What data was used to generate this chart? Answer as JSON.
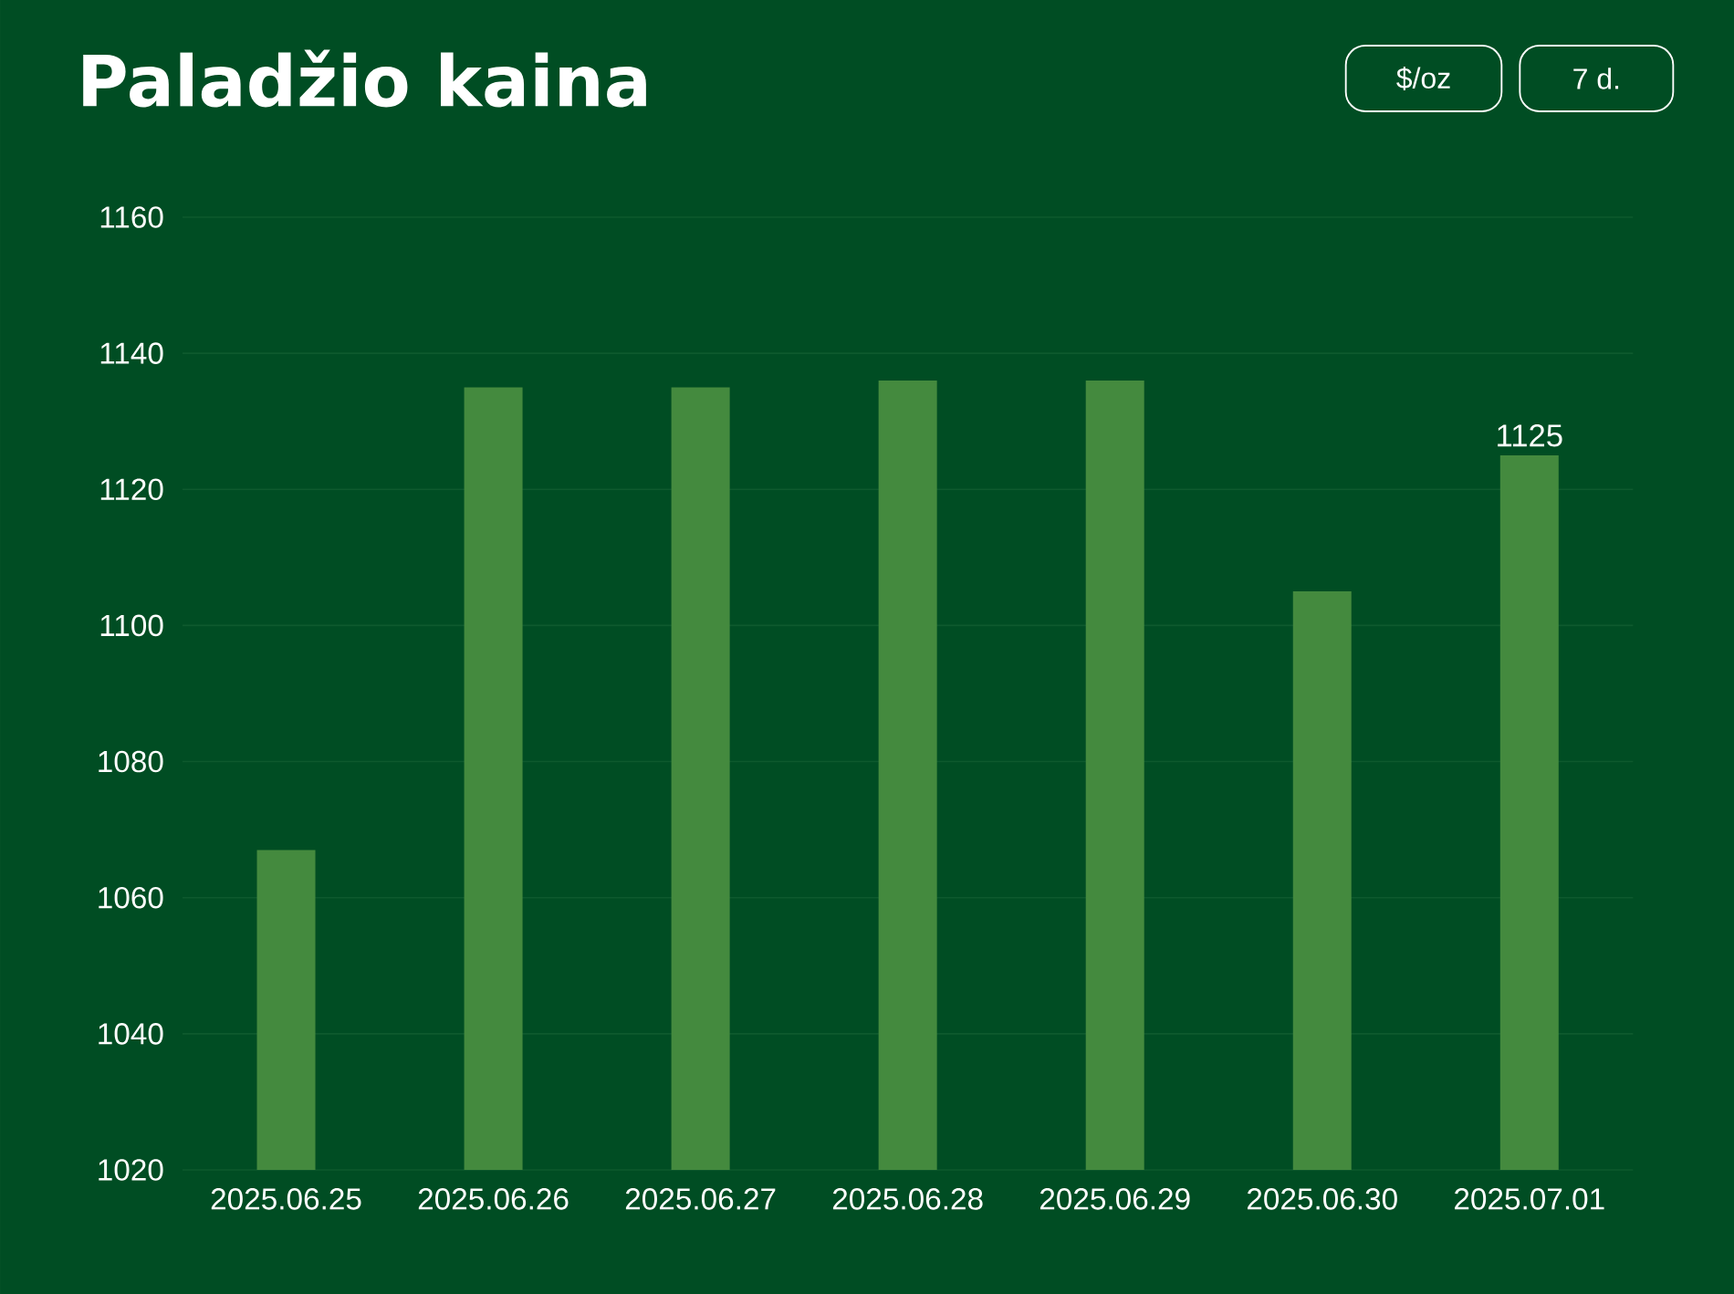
{
  "chart_data": {
    "type": "bar",
    "title": "Paladžio kaina",
    "annotations": [
      "$/oz",
      "7 d."
    ],
    "categories": [
      "2025.06.25",
      "2025.06.26",
      "2025.06.27",
      "2025.06.28",
      "2025.06.29",
      "2025.06.30",
      "2025.07.01"
    ],
    "values": [
      1067,
      1135,
      1135,
      1136,
      1136,
      1105,
      1125
    ],
    "value_labels": [
      null,
      null,
      null,
      null,
      null,
      null,
      "1125"
    ],
    "color": "#448a3e",
    "ylim": [
      1020,
      1160
    ],
    "yticks": [
      1020,
      1040,
      1060,
      1080,
      1100,
      1120,
      1140,
      1160
    ],
    "grid": "y"
  }
}
